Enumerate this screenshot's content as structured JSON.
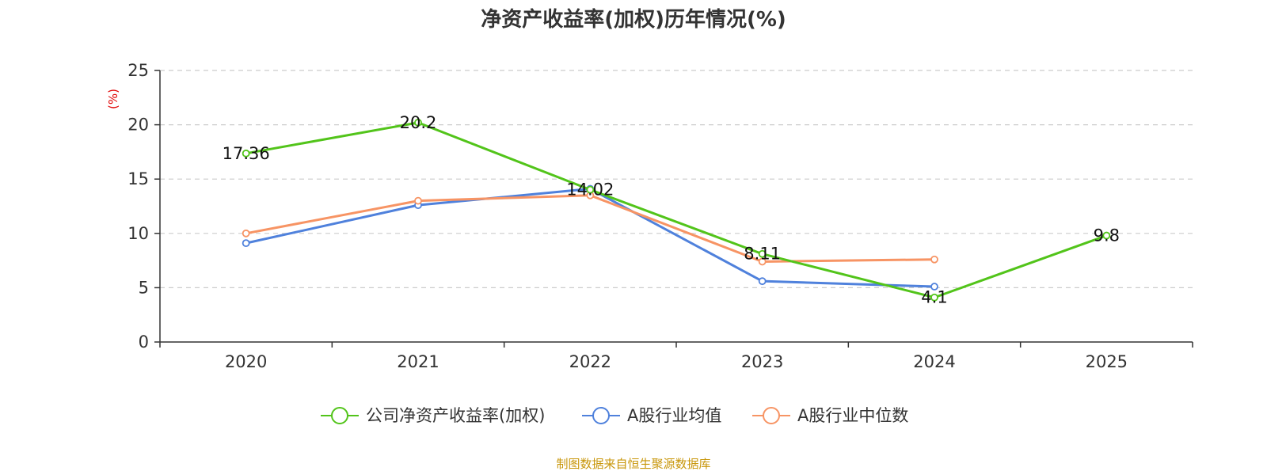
{
  "chart_data": {
    "type": "line",
    "title": "净资产收益率(加权)历年情况(%)",
    "ylabel": "(%)",
    "xlabel": "",
    "ylim": [
      0,
      25
    ],
    "yticks": [
      0,
      5,
      10,
      15,
      20,
      25
    ],
    "categories": [
      "2020",
      "2021",
      "2022",
      "2023",
      "2024",
      "2025"
    ],
    "grid": true,
    "legend_position": "bottom-center",
    "series": [
      {
        "name": "公司净资产收益率(加权)",
        "color": "#52c41a",
        "values": [
          17.36,
          20.2,
          14.02,
          8.11,
          4.1,
          9.8
        ],
        "labels": [
          "17.36",
          "20.2",
          "14.02",
          "8.11",
          "4.1",
          "9.8"
        ]
      },
      {
        "name": "A股行业均值",
        "color": "#4f81dc",
        "values": [
          9.1,
          12.6,
          14.1,
          5.6,
          5.1,
          null
        ]
      },
      {
        "name": "A股行业中位数",
        "color": "#f79464",
        "values": [
          10.0,
          13.0,
          13.5,
          7.4,
          7.6,
          null
        ]
      }
    ],
    "source": "制图数据来自恒生聚源数据库"
  }
}
